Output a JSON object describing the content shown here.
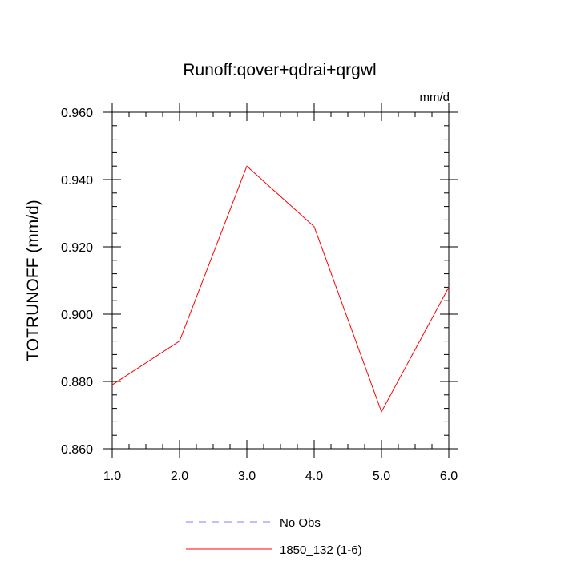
{
  "chart_data": {
    "type": "line",
    "title": "Runoff:qover+qdrai+qrgwl",
    "units_label": "mm/d",
    "xlabel": "",
    "ylabel": "TOTRUNOFF  (mm/d)",
    "xlim": [
      1.0,
      6.0
    ],
    "ylim": [
      0.86,
      0.96
    ],
    "x_ticks": [
      1.0,
      2.0,
      3.0,
      4.0,
      5.0,
      6.0
    ],
    "x_tick_labels": [
      "1.0",
      "2.0",
      "3.0",
      "4.0",
      "5.0",
      "6.0"
    ],
    "y_ticks": [
      0.86,
      0.88,
      0.9,
      0.92,
      0.94,
      0.96
    ],
    "y_tick_labels": [
      "0.860",
      "0.880",
      "0.900",
      "0.920",
      "0.940",
      "0.960"
    ],
    "grid": false,
    "legend_position": "bottom",
    "series": [
      {
        "name": "No Obs",
        "color": "#8080ff",
        "dash": "dashed",
        "x": [],
        "values": []
      },
      {
        "name": "1850_132 (1-6)",
        "color": "#ff0000",
        "dash": "solid",
        "x": [
          1.0,
          2.0,
          3.0,
          4.0,
          5.0,
          6.0
        ],
        "values": [
          0.879,
          0.892,
          0.944,
          0.926,
          0.871,
          0.908
        ]
      }
    ]
  }
}
